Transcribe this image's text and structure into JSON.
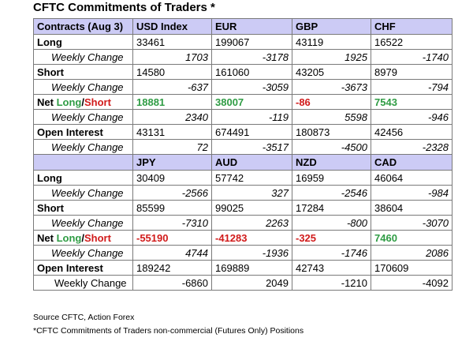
{
  "title": "CFTC Commitments of Traders *",
  "colors": {
    "header_bg": "#cccbf5",
    "positive": "#2f9c44",
    "negative": "#d11b1b"
  },
  "section1": {
    "headers": [
      "Contracts (Aug 3)",
      "USD Index",
      "EUR",
      "GBP",
      "CHF"
    ],
    "long": [
      "33461",
      "199067",
      "43119",
      "16522"
    ],
    "long_change": [
      "1703",
      "-3178",
      "1925",
      "-1740"
    ],
    "short": [
      "14580",
      "161060",
      "43205",
      "8979"
    ],
    "short_change": [
      "-637",
      "-3059",
      "-3673",
      "-794"
    ],
    "net": [
      "18881",
      "38007",
      "-86",
      "7543"
    ],
    "net_change": [
      "2340",
      "-119",
      "5598",
      "-946"
    ],
    "oi": [
      "43131",
      "674491",
      "180873",
      "42456"
    ],
    "oi_change": [
      "72",
      "-3517",
      "-4500",
      "-2328"
    ]
  },
  "section2": {
    "headers": [
      "",
      "JPY",
      "AUD",
      "NZD",
      "CAD"
    ],
    "long": [
      "30409",
      "57742",
      "16959",
      "46064"
    ],
    "long_change": [
      "-2566",
      "327",
      "-2546",
      "-984"
    ],
    "short": [
      "85599",
      "99025",
      "17284",
      "38604"
    ],
    "short_change": [
      "-7310",
      "2263",
      "-800",
      "-3070"
    ],
    "net": [
      "-55190",
      "-41283",
      "-325",
      "7460"
    ],
    "net_change": [
      "4744",
      "-1936",
      "-1746",
      "2086"
    ],
    "oi": [
      "189242",
      "169889",
      "42743",
      "170609"
    ],
    "oi_change": [
      "-6860",
      "2049",
      "-1210",
      "-4092"
    ]
  },
  "labels": {
    "long": "Long",
    "short": "Short",
    "weekly_change": "Weekly Change",
    "net_prefix": "Net ",
    "net_long": "Long",
    "net_slash": "/",
    "net_short": "Short",
    "open_interest": "Open Interest"
  },
  "footer": {
    "source": "Source CFTC, Action Forex",
    "note": "*CFTC Commitments of Traders non-commercial (Futures Only) Positions"
  }
}
